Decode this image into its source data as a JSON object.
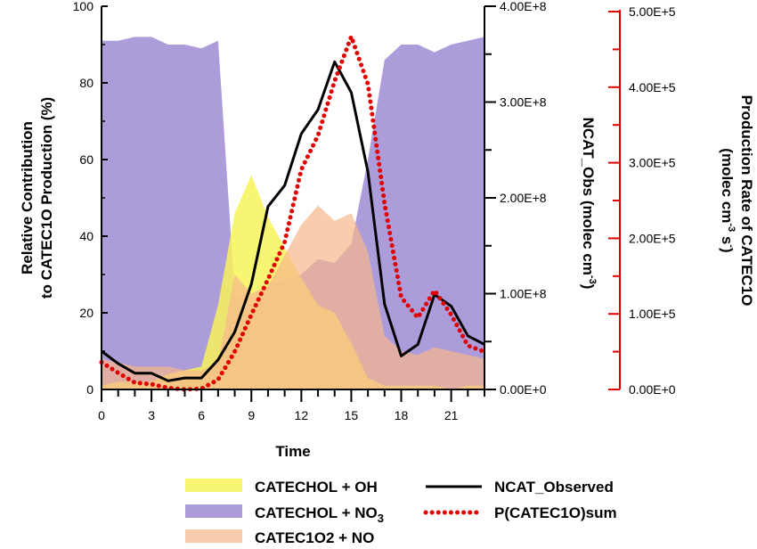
{
  "chart_data": {
    "type": "area",
    "xlabel": "Time",
    "x_ticks": [
      "0",
      "3",
      "6",
      "9",
      "12",
      "15",
      "18",
      "21"
    ],
    "x": [
      0,
      1,
      2,
      3,
      4,
      5,
      6,
      7,
      8,
      9,
      10,
      11,
      12,
      13,
      14,
      15,
      16,
      17,
      18,
      19,
      20,
      21,
      22,
      23
    ],
    "left_axis": {
      "label_line1": "Relative Contribution",
      "label_line2": "to CATEC1O Production (%)",
      "ticks": [
        "0",
        "20",
        "40",
        "60",
        "80",
        "100"
      ],
      "ylim": [
        0,
        100
      ]
    },
    "mid_axis": {
      "label": "NCAT_Obs (molec cm",
      "label_sup": "-3",
      "label_end": ")",
      "ticks": [
        "0.00E+0",
        "1.00E+8",
        "2.00E+8",
        "3.00E+8",
        "4.00E+8"
      ],
      "ylim": [
        0,
        400000000
      ]
    },
    "right_axis": {
      "label_line1": "Production Rate of CATEC1O",
      "label_line2_a": "(molec cm",
      "label_line2_sup1": "-3",
      "label_line2_b": " s",
      "label_line2_sup2": "-",
      "label_line2_c": ")",
      "ticks": [
        "0.00E+0",
        "1.00E+5",
        "2.00E+5",
        "3.00E+5",
        "4.00E+5",
        "5.00E+5"
      ],
      "ylim": [
        0,
        500000
      ],
      "color": "#e00000"
    },
    "series": [
      {
        "name": "CATECHOL + OH",
        "kind": "area",
        "axis": "left",
        "color": "#f7f35a",
        "values": [
          1,
          2,
          2,
          2,
          4,
          5,
          6,
          22,
          46,
          56,
          45,
          37,
          29,
          22,
          20,
          12,
          3,
          1,
          1,
          1,
          1,
          0,
          1,
          1
        ]
      },
      {
        "name": "CATECHOL + NO",
        "name_sub": "3",
        "kind": "area",
        "axis": "left",
        "color": "#9d8bd3",
        "values": [
          91,
          91,
          92,
          92,
          90,
          90,
          89,
          91,
          25,
          22,
          27,
          29,
          30,
          34,
          33,
          38,
          60,
          86,
          90,
          90,
          88,
          90,
          91,
          92
        ]
      },
      {
        "name": "CATEC1O2 + NO",
        "kind": "area",
        "axis": "left",
        "color": "#f8b68c",
        "values": [
          8,
          7,
          6,
          6,
          6,
          5,
          5,
          7,
          30,
          25,
          27,
          35,
          43,
          48,
          44,
          46,
          36,
          14,
          10,
          9,
          11,
          10,
          9,
          8
        ]
      },
      {
        "name": "NCAT_Observed",
        "kind": "line",
        "axis": "mid",
        "color": "#000000",
        "values": [
          40000000,
          27000000,
          17000000,
          17000000,
          9000000,
          12000000,
          12000000,
          31000000,
          60000000,
          110000000,
          191000000,
          213000000,
          267000000,
          292000000,
          342000000,
          310000000,
          227000000,
          89000000,
          35000000,
          47000000,
          99000000,
          87000000,
          56000000,
          47000000
        ]
      },
      {
        "name": "P(CATEC1O)sum",
        "kind": "dotted",
        "axis": "right",
        "color": "#e00000",
        "values": [
          36000,
          22000,
          9000,
          7000,
          2000,
          0,
          1000,
          13000,
          50000,
          99000,
          146000,
          195000,
          291000,
          336000,
          408000,
          467000,
          404000,
          246000,
          122000,
          95000,
          131000,
          99000,
          58000,
          50000
        ]
      }
    ]
  }
}
